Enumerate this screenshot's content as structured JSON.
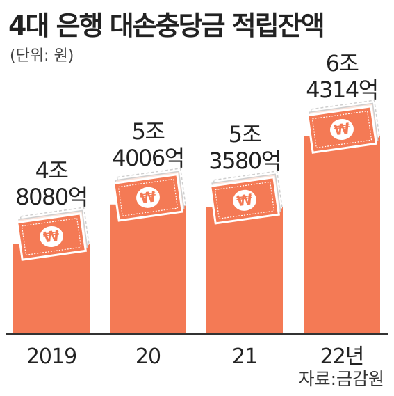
{
  "title": "4대 은행 대손충당금 적립잔액",
  "unit": "(단위: 원)",
  "source": "자료:금감원",
  "colors": {
    "bar": "#F47A55",
    "bill": "#F47A55",
    "bill_edge": "#ffffff",
    "bill_shadow": "#cfcfcf",
    "won_symbol": "#ffffff",
    "axis": "#333333"
  },
  "icons": {
    "bill": "won-banknote-stack-icon"
  },
  "chart_data": {
    "type": "bar",
    "title": "4대 은행 대손충당금 적립잔액",
    "unit": "(단위: 원)",
    "categories": [
      "2019",
      "20",
      "21",
      "22년"
    ],
    "values": [
      4.808,
      5.4006,
      5.358,
      6.4314
    ],
    "value_labels": [
      [
        "4조",
        "8080억"
      ],
      [
        "5조",
        "4006억"
      ],
      [
        "5조",
        "3580억"
      ],
      [
        "6조",
        "4314억"
      ]
    ],
    "bill_symbol": "₩",
    "grid": false,
    "legend": "none"
  }
}
